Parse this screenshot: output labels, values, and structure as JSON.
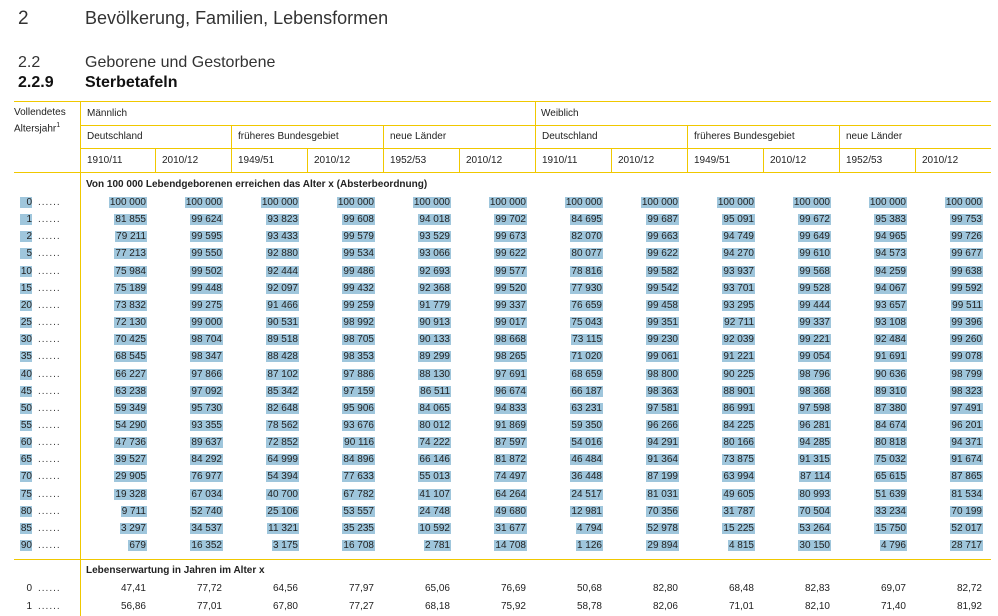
{
  "header": {
    "chapter_num": "2",
    "chapter_title": "Bevölkerung, Familien, Lebensformen",
    "section_num": "2.2",
    "section_title": "Geborene und Gestorbene",
    "subsection_num": "2.2.9",
    "subsection_title": "Sterbetafeln"
  },
  "table": {
    "stub_line1": "Vollendetes",
    "stub_line2": "Altersjahr",
    "stub_footnote": "1",
    "sex_headers": [
      "Männlich",
      "Weiblich"
    ],
    "region_headers": [
      "Deutschland",
      "früheres Bundesgebiet",
      "neue Länder",
      "Deutschland",
      "früheres Bundesgebiet",
      "neue Länder"
    ],
    "period_headers": [
      "1910/11",
      "2010/12",
      "1949/51",
      "2010/12",
      "1952/53",
      "2010/12",
      "1910/11",
      "2010/12",
      "1949/51",
      "2010/12",
      "1952/53",
      "2010/12"
    ],
    "section1_title": "Von 100 000 Lebendgeborenen erreichen das Alter x (Absterbeordnung)",
    "section2_title": "Lebenserwartung in Jahren im Alter x",
    "dots": "......",
    "survivors": [
      {
        "age": "0",
        "values": [
          "100 000",
          "100 000",
          "100 000",
          "100 000",
          "100 000",
          "100 000",
          "100 000",
          "100 000",
          "100 000",
          "100 000",
          "100 000",
          "100 000"
        ]
      },
      {
        "age": "1",
        "values": [
          "81 855",
          "99 624",
          "93 823",
          "99 608",
          "94 018",
          "99 702",
          "84 695",
          "99 687",
          "95 091",
          "99 672",
          "95 383",
          "99 753"
        ]
      },
      {
        "age": "2",
        "values": [
          "79 211",
          "99 595",
          "93 433",
          "99 579",
          "93 529",
          "99 673",
          "82 070",
          "99 663",
          "94 749",
          "99 649",
          "94 965",
          "99 726"
        ]
      },
      {
        "age": "5",
        "values": [
          "77 213",
          "99 550",
          "92 880",
          "99 534",
          "93 066",
          "99 622",
          "80 077",
          "99 622",
          "94 270",
          "99 610",
          "94 573",
          "99 677"
        ]
      },
      {
        "age": "10",
        "values": [
          "75 984",
          "99 502",
          "92 444",
          "99 486",
          "92 693",
          "99 577",
          "78 816",
          "99 582",
          "93 937",
          "99 568",
          "94 259",
          "99 638"
        ]
      },
      {
        "age": "15",
        "values": [
          "75 189",
          "99 448",
          "92 097",
          "99 432",
          "92 368",
          "99 520",
          "77 930",
          "99 542",
          "93 701",
          "99 528",
          "94 067",
          "99 592"
        ]
      },
      {
        "age": "20",
        "values": [
          "73 832",
          "99 275",
          "91 466",
          "99 259",
          "91 779",
          "99 337",
          "76 659",
          "99 458",
          "93 295",
          "99 444",
          "93 657",
          "99 511"
        ]
      },
      {
        "age": "25",
        "values": [
          "72 130",
          "99 000",
          "90 531",
          "98 992",
          "90 913",
          "99 017",
          "75 043",
          "99 351",
          "92 711",
          "99 337",
          "93 108",
          "99 396"
        ]
      },
      {
        "age": "30",
        "values": [
          "70 425",
          "98 704",
          "89 518",
          "98 705",
          "90 133",
          "98 668",
          "73 115",
          "99 230",
          "92 039",
          "99 221",
          "92 484",
          "99 260"
        ]
      },
      {
        "age": "35",
        "values": [
          "68 545",
          "98 347",
          "88 428",
          "98 353",
          "89 299",
          "98 265",
          "71 020",
          "99 061",
          "91 221",
          "99 054",
          "91 691",
          "99 078"
        ]
      },
      {
        "age": "40",
        "values": [
          "66 227",
          "97 866",
          "87 102",
          "97 886",
          "88 130",
          "97 691",
          "68 659",
          "98 800",
          "90 225",
          "98 796",
          "90 636",
          "98 799"
        ]
      },
      {
        "age": "45",
        "values": [
          "63 238",
          "97 092",
          "85 342",
          "97 159",
          "86 511",
          "96 674",
          "66 187",
          "98 363",
          "88 901",
          "98 368",
          "89 310",
          "98 323"
        ]
      },
      {
        "age": "50",
        "values": [
          "59 349",
          "95 730",
          "82 648",
          "95 906",
          "84 065",
          "94 833",
          "63 231",
          "97 581",
          "86 991",
          "97 598",
          "87 380",
          "97 491"
        ]
      },
      {
        "age": "55",
        "values": [
          "54 290",
          "93 355",
          "78 562",
          "93 676",
          "80 012",
          "91 869",
          "59 350",
          "96 266",
          "84 225",
          "96 281",
          "84 674",
          "96 201"
        ]
      },
      {
        "age": "60",
        "values": [
          "47 736",
          "89 637",
          "72 852",
          "90 116",
          "74 222",
          "87 597",
          "54 016",
          "94 291",
          "80 166",
          "94 285",
          "80 818",
          "94 371"
        ]
      },
      {
        "age": "65",
        "values": [
          "39 527",
          "84 292",
          "64 999",
          "84 896",
          "66 146",
          "81 872",
          "46 484",
          "91 364",
          "73 875",
          "91 315",
          "75 032",
          "91 674"
        ]
      },
      {
        "age": "70",
        "values": [
          "29 905",
          "76 977",
          "54 394",
          "77 633",
          "55 013",
          "74 497",
          "36 448",
          "87 199",
          "63 994",
          "87 114",
          "65 615",
          "87 865"
        ]
      },
      {
        "age": "75",
        "values": [
          "19 328",
          "67 034",
          "40 700",
          "67 782",
          "41 107",
          "64 264",
          "24 517",
          "81 031",
          "49 605",
          "80 993",
          "51 639",
          "81 534"
        ]
      },
      {
        "age": "80",
        "values": [
          "9 711",
          "52 740",
          "25 106",
          "53 557",
          "24 748",
          "49 680",
          "12 981",
          "70 356",
          "31 787",
          "70 504",
          "33 234",
          "70 199"
        ]
      },
      {
        "age": "85",
        "values": [
          "3 297",
          "34 537",
          "11 321",
          "35 235",
          "10 592",
          "31 677",
          "4 794",
          "52 978",
          "15 225",
          "53 264",
          "15 750",
          "52 017"
        ]
      },
      {
        "age": "90",
        "values": [
          "679",
          "16 352",
          "3 175",
          "16 708",
          "2 781",
          "14 708",
          "1 126",
          "29 894",
          "4 815",
          "30 150",
          "4 796",
          "28 717"
        ]
      }
    ],
    "life_expectancy": [
      {
        "age": "0",
        "values": [
          "47,41",
          "77,72",
          "64,56",
          "77,97",
          "65,06",
          "76,69",
          "50,68",
          "82,80",
          "68,48",
          "82,83",
          "69,07",
          "82,72"
        ]
      },
      {
        "age": "1",
        "values": [
          "56,86",
          "77,01",
          "67,80",
          "77,27",
          "68,18",
          "75,92",
          "58,78",
          "82,06",
          "71,01",
          "82,10",
          "71,40",
          "81,92"
        ]
      }
    ]
  },
  "colors": {
    "rule": "#f0c800",
    "highlight": "#9fc6dc"
  }
}
